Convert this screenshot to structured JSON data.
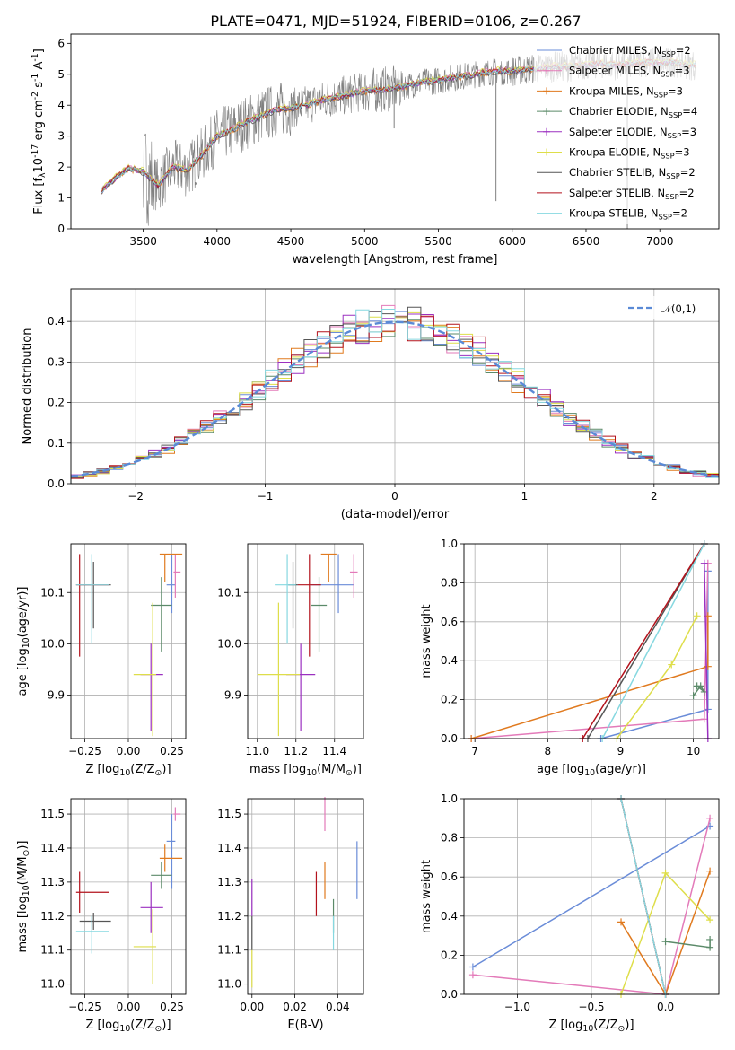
{
  "chart_data": [
    {
      "id": "spectrum",
      "type": "line",
      "title": "PLATE=0471, MJD=51924, FIBERID=0106, z=0.267",
      "xlabel": "wavelength [Angstrom, rest frame]",
      "ylabel": "Flux [f$_\\lambda$10$^{-17}$ erg cm$^{-2}$ s$^{-1}$ A$^{-1}$]",
      "xlim": [
        3010,
        7400
      ],
      "ylim": [
        0,
        6.3
      ],
      "xticks": [
        3500,
        4000,
        4500,
        5000,
        5500,
        6000,
        6500,
        7000
      ],
      "yticks": [
        0,
        1,
        2,
        3,
        4,
        5,
        6
      ],
      "data_line_color": "#808080",
      "data_anchor_x": [
        3220,
        3300,
        3400,
        3500,
        3600,
        3700,
        3800,
        3900,
        4000,
        4100,
        4200,
        4300,
        4400,
        4500,
        4600,
        4700,
        4800,
        4900,
        5000,
        5100,
        5200,
        5300,
        5400,
        5500,
        5600,
        5700,
        5800,
        5900,
        6000,
        6100,
        6200,
        6300,
        6400,
        6500,
        6600,
        6700,
        6800,
        6900,
        7000,
        7100,
        7200
      ],
      "data_anchor_y": [
        1.25,
        1.6,
        1.95,
        1.85,
        1.4,
        2.0,
        1.9,
        2.4,
        3.0,
        3.2,
        3.45,
        3.65,
        3.85,
        3.9,
        4.0,
        4.15,
        4.25,
        4.35,
        4.45,
        4.5,
        4.55,
        4.65,
        4.75,
        4.8,
        4.9,
        4.95,
        5.05,
        5.1,
        5.1,
        5.15,
        5.2,
        5.25,
        5.25,
        5.3,
        5.35,
        5.3,
        5.35,
        5.4,
        5.35,
        5.4,
        5.3
      ],
      "legend_position": "upper right",
      "legend": [
        {
          "label": "Chabrier MILES, N$_{SSP}$=2",
          "color": "#6a8cd8"
        },
        {
          "label": "Salpeter MILES, N$_{SSP}$=3",
          "color": "#e37ab9"
        },
        {
          "label": "Kroupa MILES, N$_{SSP}$=3",
          "color": "#e07a1f"
        },
        {
          "label": "Chabrier ELODIE, N$_{SSP}$=4",
          "color": "#5b8a69"
        },
        {
          "label": "Salpeter ELODIE, N$_{SSP}$=3",
          "color": "#9b30c0"
        },
        {
          "label": "Kroupa ELODIE, N$_{SSP}$=3",
          "color": "#dede4a"
        },
        {
          "label": "Chabrier STELIB, N$_{SSP}$=2",
          "color": "#555555"
        },
        {
          "label": "Salpeter STELIB, N$_{SSP}$=2",
          "color": "#b3121c"
        },
        {
          "label": "Kroupa STELIB, N$_{SSP}$=2",
          "color": "#86d8e0"
        }
      ]
    },
    {
      "id": "residuals",
      "type": "line",
      "xlabel": "(data-model)/error",
      "ylabel": "Normed distribution",
      "xlim": [
        -2.5,
        2.5
      ],
      "ylim": [
        0,
        0.48
      ],
      "xticks": [
        -2,
        -1,
        0,
        1,
        2
      ],
      "yticks": [
        0.0,
        0.1,
        0.2,
        0.3,
        0.4
      ],
      "grid": true,
      "legend_position": "upper right",
      "legend": [
        {
          "label": "$\\mathcal{N}(0,1)$",
          "color": "#5a8ad6",
          "style": "dashed"
        }
      ],
      "gaussian": {
        "mu": 0,
        "sigma": 1
      }
    },
    {
      "id": "age_vs_Z",
      "type": "scatter",
      "xlabel": "Z [log$_{10}$($Z/Z_\\odot$)]",
      "ylabel": "age  [log$_{10}$($age/yr$)]",
      "xlim": [
        -0.33,
        0.33
      ],
      "ylim": [
        9.815,
        10.195
      ],
      "xticks": [
        -0.25,
        0.0,
        0.25
      ],
      "yticks": [
        9.9,
        10.0,
        10.1
      ],
      "grid": true
    },
    {
      "id": "age_vs_mass",
      "type": "scatter",
      "xlabel": "mass [log$_{10}$($M/M_\\odot$)]",
      "xlim": [
        10.95,
        11.55
      ],
      "ylim": [
        9.815,
        10.195
      ],
      "xticks": [
        11.0,
        11.2,
        11.4
      ],
      "yticks": [
        9.9,
        10.0,
        10.1
      ],
      "grid": true
    },
    {
      "id": "weight_vs_age",
      "type": "line",
      "xlabel": "age  [log$_{10}$($age/yr$)]",
      "ylabel": "mass weight",
      "xlim": [
        6.85,
        10.35
      ],
      "ylim": [
        0,
        1
      ],
      "xticks": [
        7,
        8,
        9,
        10
      ],
      "yticks": [
        0.0,
        0.2,
        0.4,
        0.6,
        0.8,
        1.0
      ],
      "grid": true
    },
    {
      "id": "mass_vs_Z",
      "type": "scatter",
      "xlabel": "Z [log$_{10}$($Z/Z_\\odot$)]",
      "ylabel": "mass [log$_{10}$($M/M_\\odot$)]",
      "xlim": [
        -0.33,
        0.33
      ],
      "ylim": [
        10.97,
        11.545
      ],
      "xticks": [
        -0.25,
        0.0,
        0.25
      ],
      "yticks": [
        11.0,
        11.1,
        11.2,
        11.3,
        11.4,
        11.5
      ],
      "grid": true
    },
    {
      "id": "mass_vs_ebv",
      "type": "scatter",
      "xlabel": "E(B-V)",
      "xlim": [
        -0.002,
        0.052
      ],
      "ylim": [
        10.97,
        11.545
      ],
      "xticks": [
        0.0,
        0.02,
        0.04
      ],
      "yticks": [
        11.0,
        11.1,
        11.2,
        11.3,
        11.4,
        11.5
      ],
      "grid": true
    },
    {
      "id": "weight_vs_Z",
      "type": "line",
      "xlabel": "Z [log$_{10}$($Z/Z_\\odot$)]",
      "ylabel": "mass weight",
      "xlim": [
        -1.36,
        0.36
      ],
      "ylim": [
        0,
        1
      ],
      "xticks": [
        -1.0,
        -0.5,
        0.0
      ],
      "yticks": [
        0.0,
        0.2,
        0.4,
        0.6,
        0.8,
        1.0
      ],
      "grid": true
    }
  ],
  "models": [
    {
      "color": "#6a8cd8",
      "Z": 0.25,
      "Zlo": 0.22,
      "Zhi": 0.27,
      "age": 10.115,
      "agelo": 10.06,
      "agehi": 10.175,
      "mass": 11.42,
      "masslo": 11.28,
      "masshi": 11.5,
      "ebv": 0.049,
      "ebvlo": 11.25,
      "ebvhi": 11.42,
      "w_age": [
        [
          8.73,
          0.0
        ],
        [
          10.2,
          0.15
        ],
        [
          10.2,
          0.86
        ]
      ],
      "w_Z": [
        [
          -1.3,
          0.14
        ],
        [
          0.3,
          0.86
        ]
      ]
    },
    {
      "color": "#e37ab9",
      "Z": 0.27,
      "Zlo": 0.26,
      "Zhi": 0.3,
      "age": 10.14,
      "agelo": 10.09,
      "agehi": 10.175,
      "mass": 11.5,
      "masslo": 11.48,
      "masshi": 11.52,
      "ebv": 0.034,
      "ebvlo": 11.45,
      "ebvhi": 11.55,
      "w_age": [
        [
          6.95,
          0.0
        ],
        [
          10.15,
          0.1
        ],
        [
          10.2,
          0.9
        ]
      ],
      "w_Z": [
        [
          -1.3,
          0.1
        ],
        [
          0.0,
          0.0
        ],
        [
          0.3,
          0.9
        ]
      ]
    },
    {
      "color": "#e07a1f",
      "Z": 0.21,
      "Zlo": 0.18,
      "Zhi": 0.31,
      "age": 10.175,
      "agelo": 10.12,
      "agehi": 10.175,
      "mass": 11.37,
      "masslo": 11.33,
      "masshi": 11.41,
      "ebv": 0.034,
      "ebvlo": 11.25,
      "ebvhi": 11.36,
      "w_age": [
        [
          6.95,
          0.0
        ],
        [
          10.2,
          0.37
        ],
        [
          10.2,
          0.63
        ]
      ],
      "w_Z": [
        [
          -0.3,
          0.37
        ],
        [
          0.0,
          0.0
        ],
        [
          0.3,
          0.63
        ]
      ]
    },
    {
      "color": "#5b8a69",
      "Z": 0.19,
      "Zlo": 0.13,
      "Zhi": 0.25,
      "age": 10.075,
      "agelo": 9.985,
      "agehi": 10.13,
      "mass": 11.32,
      "masslo": 11.28,
      "masshi": 11.36,
      "ebv": 0.038,
      "ebvlo": 11.15,
      "ebvhi": 11.25,
      "w_age": [
        [
          10.0,
          0.22
        ],
        [
          10.1,
          0.27
        ],
        [
          10.15,
          0.24
        ],
        [
          10.05,
          0.27
        ]
      ],
      "w_Z": [
        [
          0.0,
          0.27
        ],
        [
          0.3,
          0.24
        ],
        [
          0.3,
          0.28
        ]
      ]
    },
    {
      "color": "#9b30c0",
      "Z": 0.13,
      "Zlo": 0.07,
      "Zhi": 0.2,
      "age": 9.94,
      "agelo": 9.83,
      "agehi": 10.0,
      "mass": 11.225,
      "masslo": 11.15,
      "masshi": 11.3,
      "ebv": 0.0,
      "ebvlo": 11.2,
      "ebvhi": 11.31,
      "w_age": [
        [
          10.15,
          0.9
        ],
        [
          10.2,
          0.0
        ]
      ],
      "w_Z": []
    },
    {
      "color": "#dede4a",
      "Z": 0.14,
      "Zlo": 0.03,
      "Zhi": 0.16,
      "age": 9.94,
      "agelo": 9.82,
      "agehi": 10.08,
      "mass": 11.11,
      "masslo": 11.0,
      "masshi": 11.22,
      "ebv": 0.0,
      "ebvlo": 10.99,
      "ebvhi": 11.1,
      "w_age": [
        [
          8.95,
          0.0
        ],
        [
          9.7,
          0.38
        ],
        [
          10.05,
          0.63
        ]
      ],
      "w_Z": [
        [
          -0.3,
          0.0
        ],
        [
          0.0,
          0.62
        ],
        [
          0.3,
          0.38
        ]
      ]
    },
    {
      "color": "#555555",
      "Z": -0.2,
      "Zlo": -0.28,
      "Zhi": -0.1,
      "age": 10.115,
      "agelo": 10.03,
      "agehi": 10.16,
      "mass": 11.185,
      "masslo": 11.16,
      "masshi": 11.21,
      "ebv": 0.0,
      "ebvlo": 11.1,
      "ebvhi": 11.2,
      "w_age": [
        [
          8.55,
          0.0
        ],
        [
          10.15,
          1.0
        ]
      ],
      "w_Z": [
        [
          -0.3,
          1.0
        ],
        [
          0.0,
          0.0
        ]
      ]
    },
    {
      "color": "#b3121c",
      "Z": -0.28,
      "Zlo": -0.3,
      "Zhi": -0.11,
      "age": 10.115,
      "agelo": 9.975,
      "agehi": 10.175,
      "mass": 11.27,
      "masslo": 11.21,
      "masshi": 11.33,
      "ebv": 0.03,
      "ebvlo": 11.2,
      "ebvhi": 11.33,
      "w_age": [
        [
          8.48,
          0.0
        ],
        [
          10.15,
          1.0
        ]
      ],
      "w_Z": [
        [
          -0.3,
          1.0
        ],
        [
          0.0,
          0.0
        ]
      ]
    },
    {
      "color": "#86d8e0",
      "Z": -0.21,
      "Zlo": -0.3,
      "Zhi": -0.11,
      "age": 10.115,
      "agelo": 10.0,
      "agehi": 10.175,
      "mass": 11.155,
      "masslo": 11.09,
      "masshi": 11.2,
      "ebv": 0.038,
      "ebvlo": 11.1,
      "ebvhi": 11.2,
      "w_age": [
        [
          8.75,
          0.0
        ],
        [
          10.15,
          1.0
        ]
      ],
      "w_Z": [
        [
          -0.3,
          1.0
        ],
        [
          0.0,
          0.0
        ]
      ]
    }
  ]
}
